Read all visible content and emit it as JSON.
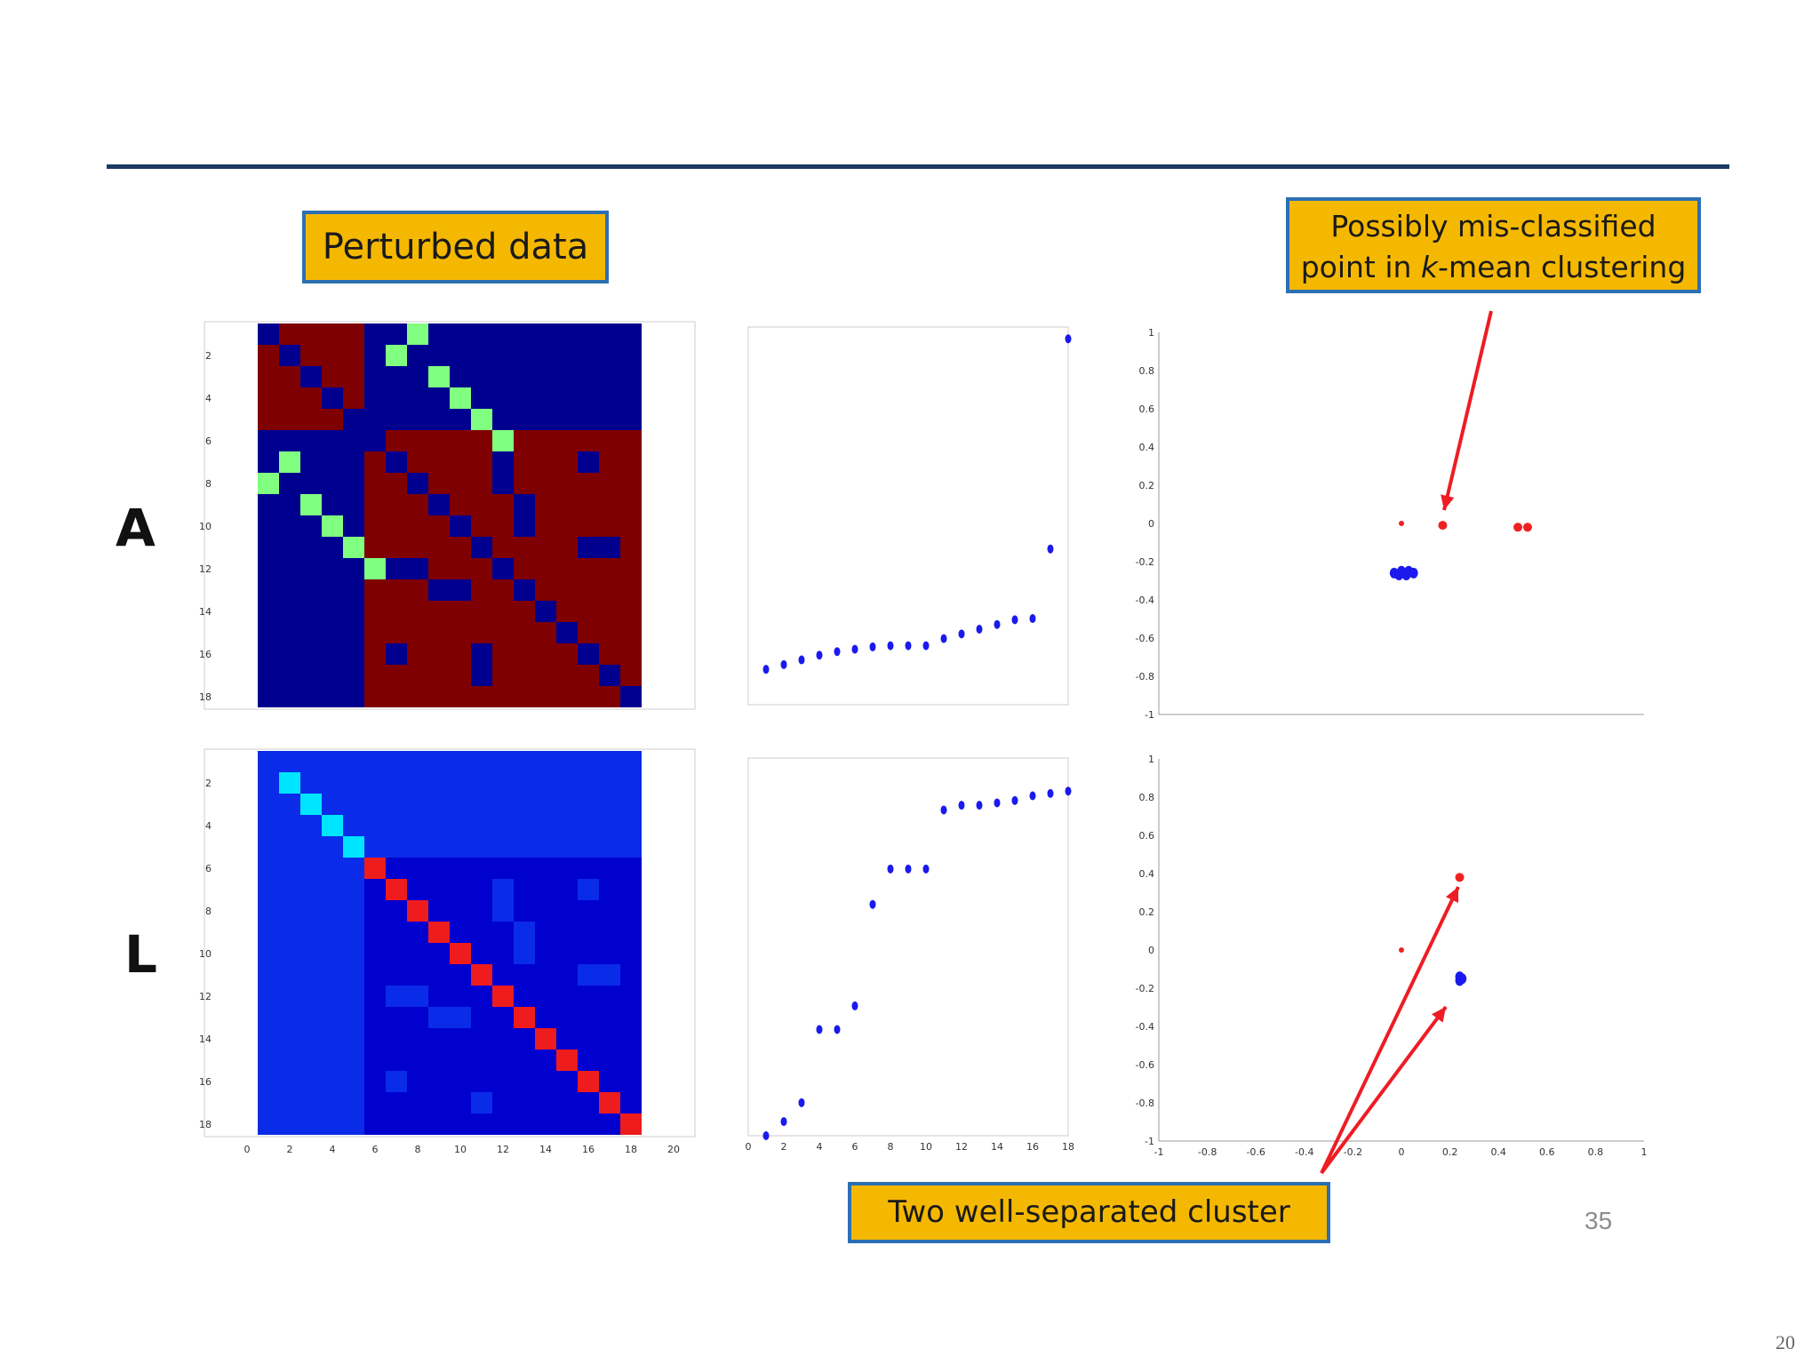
{
  "callouts": {
    "perturbed": "Perturbed data",
    "misclassified_line1": "Possibly mis-classified",
    "misclassified_pre": "point in ",
    "misclassified_italic": "k",
    "misclassified_post": "-mean clustering",
    "well_separated": "Two well-separated cluster"
  },
  "row_labels": {
    "A": "A",
    "L": "L"
  },
  "page_number": "35",
  "slide_number": "20",
  "colors": {
    "rule": "#1b3a63",
    "callout_fill": "#f5b800",
    "callout_border": "#2c6fb3",
    "arrow": "#ee1c24",
    "dot_blue": "#1a1aee",
    "dot_red": "#ee2222",
    "dark_blue": "#00008f",
    "dark_red": "#7f0000",
    "green": "#80ff80",
    "mid_blue": "#0000cf",
    "blue": "#0a2be8",
    "cyan": "#00e5ff",
    "red": "#ee1c1c"
  },
  "matrices": {
    "A": {
      "n": 18,
      "background": "dark_blue",
      "y_ticks": [
        "2",
        "4",
        "6",
        "8",
        "10",
        "12",
        "14",
        "16",
        "18"
      ],
      "blocks": [
        {
          "r0": 1,
          "r1": 5,
          "c0": 1,
          "c1": 5,
          "color": "dark_red"
        },
        {
          "r0": 6,
          "r1": 18,
          "c0": 6,
          "c1": 18,
          "color": "dark_red"
        }
      ],
      "cells_dark_blue": [
        [
          1,
          1
        ],
        [
          2,
          2
        ],
        [
          3,
          3
        ],
        [
          4,
          4
        ],
        [
          5,
          5
        ],
        [
          6,
          6
        ],
        [
          7,
          7
        ],
        [
          8,
          8
        ],
        [
          9,
          9
        ],
        [
          10,
          10
        ],
        [
          11,
          11
        ],
        [
          12,
          12
        ],
        [
          13,
          13
        ],
        [
          14,
          14
        ],
        [
          15,
          15
        ],
        [
          16,
          16
        ],
        [
          17,
          17
        ],
        [
          18,
          18
        ],
        [
          1,
          2
        ],
        [
          2,
          1
        ],
        [
          7,
          12
        ],
        [
          12,
          7
        ],
        [
          7,
          16
        ],
        [
          16,
          7
        ],
        [
          9,
          13
        ],
        [
          13,
          9
        ],
        [
          11,
          16
        ],
        [
          11,
          17
        ],
        [
          16,
          11
        ],
        [
          17,
          11
        ],
        [
          12,
          8
        ],
        [
          8,
          12
        ],
        [
          13,
          10
        ],
        [
          10,
          13
        ],
        [
          16,
          7
        ],
        [
          17,
          11
        ]
      ],
      "cells_dark_red": [
        [
          1,
          2
        ],
        [
          2,
          1
        ]
      ],
      "cells_green": [
        [
          1,
          8
        ],
        [
          2,
          7
        ],
        [
          3,
          9
        ],
        [
          4,
          10
        ],
        [
          5,
          11
        ],
        [
          6,
          12
        ],
        [
          7,
          2
        ],
        [
          8,
          1
        ],
        [
          9,
          3
        ],
        [
          10,
          4
        ],
        [
          11,
          5
        ],
        [
          12,
          6
        ]
      ]
    },
    "L": {
      "n": 18,
      "background": "mid_blue",
      "y_ticks": [
        "2",
        "4",
        "6",
        "8",
        "10",
        "12",
        "14",
        "16",
        "18"
      ],
      "x_ticks": [
        "0",
        "2",
        "4",
        "6",
        "8",
        "10",
        "12",
        "14",
        "16",
        "18",
        "20"
      ],
      "blocks": [
        {
          "r0": 1,
          "r1": 5,
          "c0": 1,
          "c1": 5,
          "color": "blue"
        },
        {
          "r0": 6,
          "r1": 18,
          "c0": 1,
          "c1": 5,
          "color": "blue"
        },
        {
          "r0": 1,
          "r1": 5,
          "c0": 6,
          "c1": 18,
          "color": "blue"
        },
        {
          "r0": 6,
          "r1": 18,
          "c0": 6,
          "c1": 18,
          "color": "mid_blue"
        }
      ],
      "diag_colors": [
        "blue",
        "cyan",
        "cyan",
        "cyan",
        "cyan",
        "red",
        "red",
        "red",
        "red",
        "red",
        "red",
        "red",
        "red",
        "red",
        "red",
        "red",
        "red",
        "red"
      ],
      "cells_blue": [
        [
          7,
          12
        ],
        [
          12,
          7
        ],
        [
          7,
          16
        ],
        [
          16,
          7
        ],
        [
          9,
          13
        ],
        [
          13,
          9
        ],
        [
          11,
          16
        ],
        [
          11,
          17
        ],
        [
          12,
          8
        ],
        [
          8,
          12
        ],
        [
          13,
          10
        ],
        [
          10,
          13
        ],
        [
          17,
          11
        ]
      ]
    }
  },
  "chart_data": [
    {
      "type": "scatter",
      "panel": "A eigenvalues",
      "x": [
        1,
        2,
        3,
        4,
        5,
        6,
        7,
        8,
        9,
        10,
        11,
        12,
        13,
        14,
        15,
        16,
        17,
        18
      ],
      "y": [
        -2.5,
        -2.3,
        -2.1,
        -1.9,
        -1.75,
        -1.65,
        -1.55,
        -1.5,
        -1.5,
        -1.5,
        -1.2,
        -1.0,
        -0.8,
        -0.6,
        -0.4,
        -0.35,
        2.6,
        11.5
      ],
      "ylim": [
        -4,
        12
      ],
      "xlim": [
        0,
        18
      ]
    },
    {
      "type": "scatter",
      "panel": "A embedding",
      "points_blue": [
        [
          -0.03,
          -0.26
        ],
        [
          -0.01,
          -0.27
        ],
        [
          0.0,
          -0.25
        ],
        [
          0.02,
          -0.27
        ],
        [
          0.03,
          -0.25
        ],
        [
          0.05,
          -0.26
        ]
      ],
      "points_red": [
        [
          0.0,
          0.0
        ],
        [
          0.17,
          -0.01
        ],
        [
          0.48,
          -0.02
        ],
        [
          0.52,
          -0.02
        ]
      ],
      "y_ticks": [
        "1",
        "0.8",
        "0.6",
        "0.4",
        "0.2",
        "0",
        "-0.2",
        "-0.4",
        "-0.6",
        "-0.8",
        "-1"
      ],
      "xlim": [
        -1,
        1
      ],
      "ylim": [
        -1,
        1
      ]
    },
    {
      "type": "scatter",
      "panel": "L eigenvalues",
      "x": [
        1,
        2,
        3,
        4,
        5,
        6,
        7,
        8,
        9,
        10,
        11,
        12,
        13,
        14,
        15,
        16,
        17,
        18
      ],
      "y": [
        0,
        0.6,
        1.4,
        4.5,
        4.5,
        5.5,
        9.8,
        11.3,
        11.3,
        11.3,
        13.8,
        14.0,
        14.0,
        14.1,
        14.2,
        14.4,
        14.5,
        14.6
      ],
      "x_ticks": [
        "0",
        "2",
        "4",
        "6",
        "8",
        "10",
        "12",
        "14",
        "16",
        "18"
      ],
      "ylim": [
        0,
        16
      ],
      "xlim": [
        0,
        18
      ]
    },
    {
      "type": "scatter",
      "panel": "L embedding",
      "points_blue": [
        [
          0.24,
          -0.14
        ],
        [
          0.25,
          -0.15
        ],
        [
          0.24,
          -0.16
        ]
      ],
      "points_red": [
        [
          0.0,
          0.0
        ],
        [
          0.24,
          0.38
        ]
      ],
      "x_ticks": [
        "-1",
        "-0.8",
        "-0.6",
        "-0.4",
        "-0.2",
        "0",
        "0.2",
        "0.4",
        "0.6",
        "0.8",
        "1"
      ],
      "y_ticks": [
        "1",
        "0.8",
        "0.6",
        "0.4",
        "0.2",
        "0",
        "-0.2",
        "-0.4",
        "-0.6",
        "-0.8",
        "-1"
      ],
      "xlim": [
        -1,
        1
      ],
      "ylim": [
        -1,
        1
      ]
    }
  ]
}
